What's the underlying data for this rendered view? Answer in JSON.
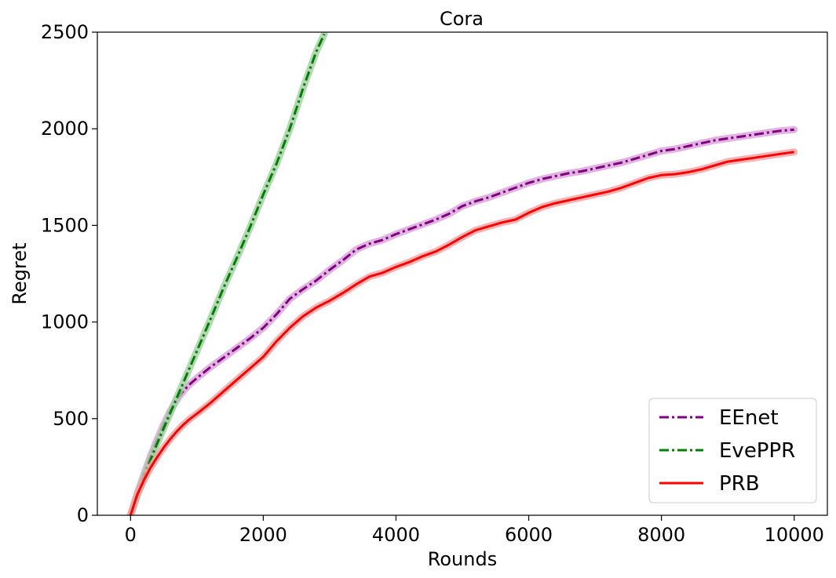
{
  "chart_data": {
    "type": "line",
    "title": "Cora",
    "xlabel": "Rounds",
    "ylabel": "Regret",
    "xlim": [
      -500,
      10500
    ],
    "ylim": [
      0,
      2500
    ],
    "xticks": [
      0,
      2000,
      4000,
      6000,
      8000,
      10000
    ],
    "xtick_labels": [
      "0",
      "2000",
      "4000",
      "6000",
      "8000",
      "10000"
    ],
    "yticks": [
      0,
      500,
      1000,
      1500,
      2000,
      2500
    ],
    "ytick_labels": [
      "0",
      "500",
      "1000",
      "1500",
      "2000",
      "2500"
    ],
    "grid": false,
    "legend_position": "lower-right",
    "series": [
      {
        "name": "EEnet",
        "color": "#800080",
        "band_color": "#d9a0d9",
        "line_style": "dash-dot",
        "x": [
          0,
          100,
          200,
          300,
          400,
          500,
          600,
          700,
          800,
          900,
          1000,
          1200,
          1400,
          1600,
          1800,
          2000,
          2200,
          2400,
          2600,
          2800,
          3000,
          3200,
          3400,
          3600,
          3800,
          4000,
          4200,
          4400,
          4600,
          4800,
          5000,
          5200,
          5400,
          5600,
          5800,
          6000,
          6200,
          6400,
          6600,
          6800,
          7000,
          7200,
          7400,
          7600,
          7800,
          8000,
          8200,
          8400,
          8600,
          8800,
          9000,
          9200,
          9400,
          9600,
          9800,
          10000
        ],
        "y": [
          0,
          110,
          210,
          305,
          390,
          470,
          540,
          600,
          645,
          680,
          710,
          765,
          815,
          865,
          915,
          970,
          1040,
          1120,
          1170,
          1215,
          1270,
          1320,
          1375,
          1405,
          1425,
          1455,
          1480,
          1505,
          1530,
          1560,
          1600,
          1625,
          1645,
          1670,
          1695,
          1720,
          1740,
          1755,
          1770,
          1780,
          1795,
          1810,
          1825,
          1845,
          1865,
          1885,
          1895,
          1910,
          1925,
          1940,
          1950,
          1960,
          1970,
          1980,
          1990,
          1995
        ]
      },
      {
        "name": "EvePPR",
        "color": "#008000",
        "band_color": "#a0d0a0",
        "line_style": "dash-dot",
        "x": [
          0,
          100,
          200,
          300,
          400,
          600,
          800,
          1000,
          1200,
          1400,
          1600,
          1800,
          2000,
          2200,
          2400,
          2600,
          2800,
          2920
        ],
        "y": [
          0,
          100,
          195,
          285,
          370,
          530,
          690,
          850,
          1010,
          1175,
          1330,
          1490,
          1660,
          1820,
          2000,
          2210,
          2400,
          2490
        ]
      },
      {
        "name": "PRB",
        "color": "#ff0000",
        "band_color": "#f4a0a0",
        "line_style": "solid",
        "x": [
          0,
          100,
          200,
          300,
          400,
          500,
          600,
          700,
          800,
          900,
          1000,
          1200,
          1400,
          1600,
          1800,
          2000,
          2200,
          2400,
          2600,
          2800,
          3000,
          3200,
          3400,
          3600,
          3800,
          4000,
          4200,
          4400,
          4600,
          4800,
          5000,
          5200,
          5400,
          5600,
          5800,
          6000,
          6200,
          6400,
          6600,
          6800,
          7000,
          7200,
          7400,
          7600,
          7800,
          8000,
          8200,
          8400,
          8600,
          8800,
          9000,
          9200,
          9400,
          9600,
          9800,
          10000
        ],
        "y": [
          0,
          105,
          180,
          245,
          300,
          350,
          395,
          435,
          470,
          500,
          525,
          580,
          640,
          700,
          760,
          820,
          900,
          970,
          1030,
          1075,
          1110,
          1150,
          1195,
          1235,
          1255,
          1285,
          1310,
          1340,
          1365,
          1400,
          1440,
          1475,
          1495,
          1515,
          1530,
          1565,
          1595,
          1615,
          1630,
          1645,
          1660,
          1675,
          1695,
          1720,
          1745,
          1760,
          1765,
          1775,
          1790,
          1810,
          1830,
          1840,
          1850,
          1860,
          1870,
          1880
        ]
      }
    ]
  }
}
